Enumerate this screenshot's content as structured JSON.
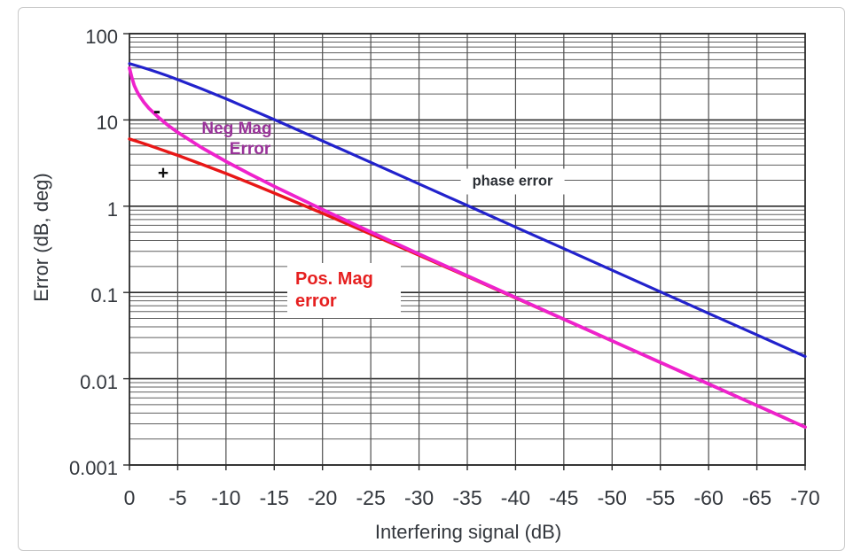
{
  "page": {
    "background": "#ffffff",
    "border_color": "#c9c9c9"
  },
  "chart_data": {
    "type": "line",
    "title": "",
    "xlabel": "Interfering signal (dB)",
    "ylabel": "Error (dB, deg)",
    "x_axis": {
      "min": -70,
      "max": 0,
      "tick_step": 5,
      "tick_labels": [
        "0",
        "-5",
        "-10",
        "-15",
        "-20",
        "-25",
        "-30",
        "-35",
        "-40",
        "-45",
        "-50",
        "-55",
        "-60",
        "-65",
        "-70"
      ]
    },
    "y_axis": {
      "scale": "log",
      "min": 0.001,
      "max": 100,
      "tick_labels": [
        "100",
        "10",
        "1",
        "0.1",
        "0.01",
        "0.001"
      ],
      "tick_values": [
        100,
        10,
        1,
        0.1,
        0.01,
        0.001
      ]
    },
    "grid": {
      "horizontal": "log decades with 2-9 minors",
      "vertical": "every 5 dB",
      "minor_color": "#5f5f5f",
      "major_color": "#2b2b2b",
      "vertical_color": "#4f4f4f"
    },
    "legend_position": "inline annotations",
    "series": [
      {
        "name": "Pos. Mag error",
        "color": "#e81717",
        "width": 3.4,
        "x": [
          0,
          -1,
          -2,
          -3,
          -4,
          -5,
          -7.5,
          -10,
          -12.5,
          -15,
          -20,
          -25,
          -30,
          -35,
          -40,
          -45,
          -50,
          -55,
          -60,
          -65,
          -70
        ],
        "y": [
          6.02,
          5.54,
          5.08,
          4.65,
          4.25,
          3.88,
          3.06,
          2.39,
          1.85,
          1.42,
          0.828,
          0.475,
          0.27,
          0.153,
          0.0864,
          0.0487,
          0.0274,
          0.0154,
          0.0087,
          0.0049,
          0.00275
        ]
      },
      {
        "name": "Neg Mag Error",
        "color": "#ee22cc",
        "width": 3.8,
        "x": [
          0,
          -0.25,
          -0.5,
          -0.75,
          -1,
          -1.5,
          -2,
          -3,
          -4,
          -5,
          -7.5,
          -10,
          -12.5,
          -15,
          -20,
          -25,
          -30,
          -35,
          -40,
          -45,
          -50,
          -55,
          -60,
          -65,
          -70
        ],
        "y": [
          40,
          30.9,
          25.1,
          21.7,
          19.3,
          16.0,
          13.7,
          10.7,
          8.66,
          7.18,
          4.76,
          3.3,
          2.35,
          1.7,
          0.915,
          0.503,
          0.279,
          0.156,
          0.0873,
          0.049,
          0.0275,
          0.0155,
          0.0087,
          0.0049,
          0.00275
        ]
      },
      {
        "name": "phase error",
        "color": "#2222cc",
        "width": 3.2,
        "x": [
          0,
          -1,
          -2,
          -3,
          -4,
          -5,
          -7.5,
          -10,
          -12.5,
          -15,
          -20,
          -25,
          -30,
          -35,
          -40,
          -45,
          -50,
          -55,
          -60,
          -65,
          -70
        ],
        "y": [
          45,
          41.7,
          38.5,
          35.3,
          32.3,
          29.3,
          22.9,
          17.6,
          13.3,
          10.1,
          5.71,
          3.22,
          1.81,
          1.02,
          0.573,
          0.322,
          0.181,
          0.102,
          0.0573,
          0.0322,
          0.0181
        ]
      }
    ],
    "annotations": [
      {
        "text": "Neg Mag Error",
        "color": "#993399",
        "near_x": -8,
        "near_y": 9,
        "background": "none"
      },
      {
        "text": "phase error",
        "color": "#2c3036",
        "near_x": -39.5,
        "near_y": 2,
        "background": "white"
      },
      {
        "text": "Pos. Mag error",
        "color": "#e62020",
        "near_x": -18,
        "near_y": 0.13,
        "background": "white"
      },
      {
        "text": "-",
        "color": "#111111",
        "near_x": -2.8,
        "near_y": 12
      },
      {
        "text": "+",
        "color": "#111111",
        "near_x": -3.5,
        "near_y": 2.4
      }
    ]
  },
  "labels": {
    "x_title": "Interfering signal (dB)",
    "y_title": "Error (dB, deg)",
    "phase": "phase error",
    "neg_mag_line1": "Neg Mag",
    "neg_mag_line2": "Error",
    "pos_mag_line1": "Pos. Mag",
    "pos_mag_line2": "error",
    "minus_mark": "-",
    "plus_mark": "+"
  }
}
